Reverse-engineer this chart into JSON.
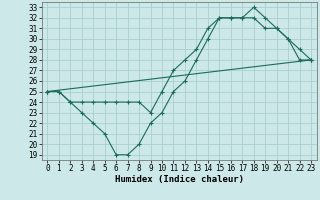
{
  "xlabel": "Humidex (Indice chaleur)",
  "background_color": "#cce8e8",
  "grid_color": "#aacfcf",
  "line_color": "#1a6b5a",
  "xlim": [
    -0.5,
    23.5
  ],
  "ylim": [
    18.5,
    33.5
  ],
  "xticks": [
    0,
    1,
    2,
    3,
    4,
    5,
    6,
    7,
    8,
    9,
    10,
    11,
    12,
    13,
    14,
    15,
    16,
    17,
    18,
    19,
    20,
    21,
    22,
    23
  ],
  "yticks": [
    19,
    20,
    21,
    22,
    23,
    24,
    25,
    26,
    27,
    28,
    29,
    30,
    31,
    32,
    33
  ],
  "line1_x": [
    0,
    1,
    2,
    3,
    4,
    5,
    6,
    7,
    8,
    9,
    10,
    11,
    12,
    13,
    14,
    15,
    16,
    17,
    18,
    19,
    20,
    21,
    22,
    23
  ],
  "line1_y": [
    25,
    25,
    24,
    23,
    22,
    21,
    19,
    19,
    20,
    22,
    23,
    25,
    26,
    28,
    30,
    32,
    32,
    32,
    33,
    32,
    31,
    30,
    29,
    28
  ],
  "line2_x": [
    0,
    1,
    2,
    3,
    4,
    5,
    6,
    7,
    8,
    9,
    10,
    11,
    12,
    13,
    14,
    15,
    16,
    17,
    18,
    19,
    20,
    21,
    22,
    23
  ],
  "line2_y": [
    25,
    25,
    24,
    24,
    24,
    24,
    24,
    24,
    24,
    23,
    25,
    27,
    28,
    29,
    31,
    32,
    32,
    32,
    32,
    31,
    31,
    30,
    28,
    28
  ],
  "line3_x": [
    0,
    23
  ],
  "line3_y": [
    25,
    28
  ],
  "tick_fontsize": 5.5,
  "xlabel_fontsize": 6.5
}
